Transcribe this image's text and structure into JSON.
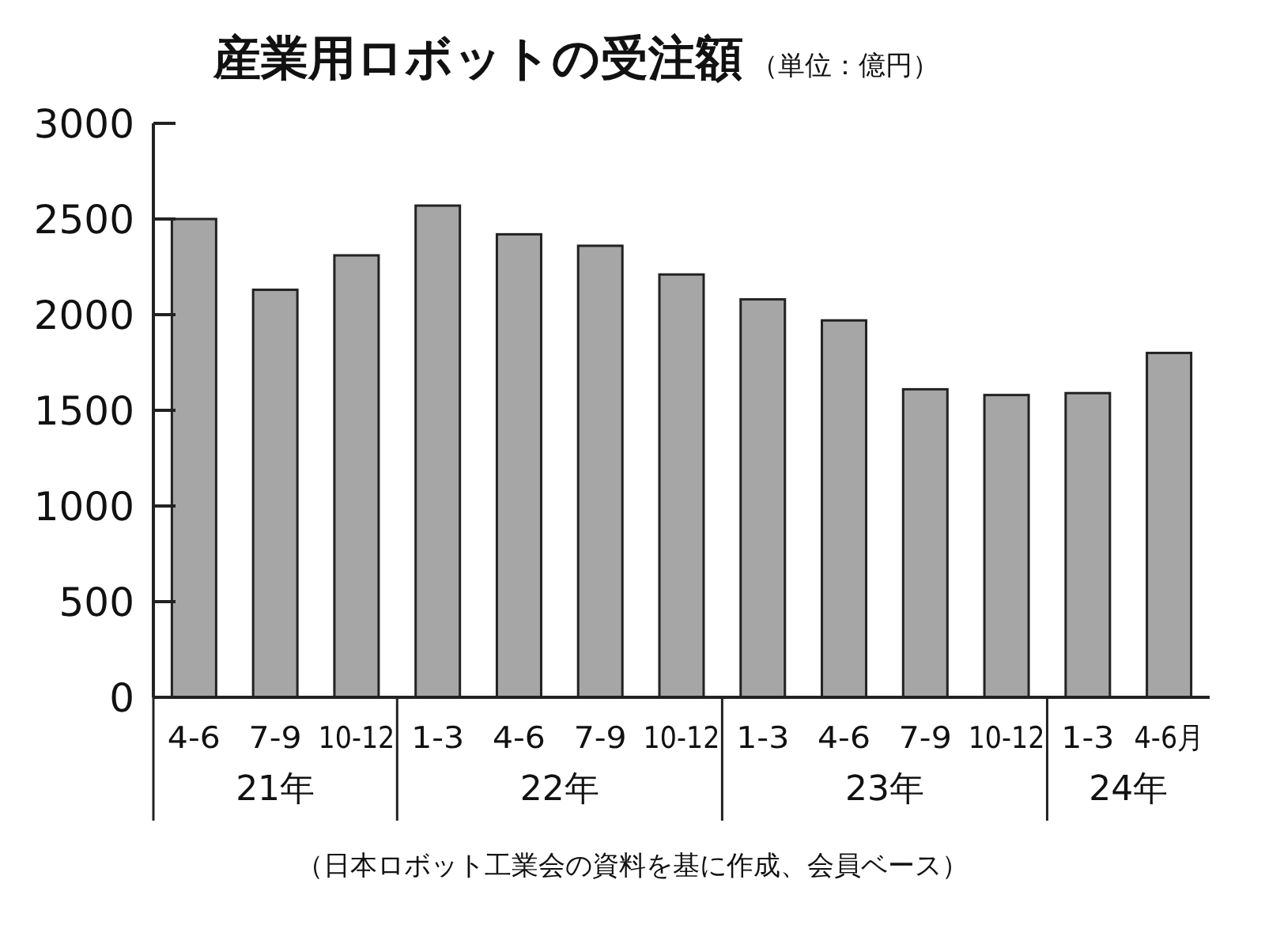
{
  "chart_data": {
    "type": "bar",
    "title": "産業用ロボットの受注額",
    "subtitle": "（単位：億円）",
    "categories": [
      "4-6",
      "7-9",
      "10-12",
      "1-3",
      "4-6",
      "7-9",
      "10-12",
      "1-3",
      "4-6",
      "7-9",
      "10-12",
      "1-3",
      "4-6月"
    ],
    "values": [
      2500,
      2130,
      2310,
      2570,
      2420,
      2360,
      2210,
      2080,
      1970,
      1610,
      1580,
      1590,
      1800
    ],
    "color": "#a6a6a6",
    "ylim": [
      0,
      3000
    ],
    "yticks": [
      0,
      500,
      1000,
      1500,
      2000,
      2500,
      3000
    ],
    "grid": false,
    "annotations": [
      "21年",
      "22年",
      "23年",
      "24年",
      "（日本ロボット工業会の資料を基に作成、会員ベース）"
    ]
  }
}
